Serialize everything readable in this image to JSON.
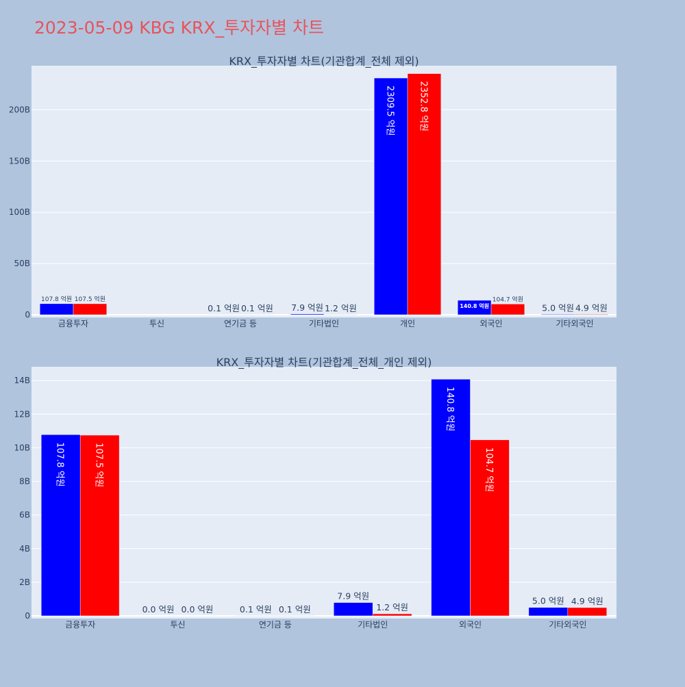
{
  "page_title": "2023-05-09 KBG KRX_투자자별 차트",
  "colors": {
    "background": "#b0c4de",
    "plot_background": "#e5ecf6",
    "title": "#e8535b",
    "text": "#2a3f5f",
    "series_1": "#0000ff",
    "series_2": "#ff0000"
  },
  "chart_data": [
    {
      "type": "bar",
      "title": "KRX_투자자별 차트(기관합계_전체 제외)",
      "categories": [
        "금융투자",
        "투신",
        "연기금 등",
        "기타법인",
        "개인",
        "외국인",
        "기타외국인"
      ],
      "series": [
        {
          "values": [
            10.78,
            0.0,
            0.01,
            0.79,
            230.95,
            14.08,
            0.5
          ],
          "labels": [
            "107.8 억원",
            "",
            "0.1 억원",
            "7.9 억원",
            "2309.5 억원",
            "140.8 억원",
            "5.0 억원"
          ]
        },
        {
          "values": [
            10.75,
            0.0,
            0.01,
            0.12,
            235.28,
            10.47,
            0.49
          ],
          "labels": [
            "107.5 억원",
            "",
            "0.1 억원",
            "1.2 억원",
            "2352.8 억원",
            "104.7 억원",
            "4.9 억원"
          ]
        }
      ],
      "yticks": [
        {
          "value": 0,
          "label": "0"
        },
        {
          "value": 50,
          "label": "50B"
        },
        {
          "value": 100,
          "label": "100B"
        },
        {
          "value": 150,
          "label": "150B"
        },
        {
          "value": 200,
          "label": "200B"
        }
      ],
      "ylim": [
        0,
        243
      ],
      "grid": true
    },
    {
      "type": "bar",
      "title": "KRX_투자자별 차트(기관합계_전체_개인 제외)",
      "categories": [
        "금융투자",
        "투신",
        "연기금 등",
        "기타법인",
        "외국인",
        "기타외국인"
      ],
      "series": [
        {
          "values": [
            10.78,
            0.0,
            0.01,
            0.79,
            14.08,
            0.5
          ],
          "labels": [
            "107.8 억원",
            "0.0 억원",
            "0.1 억원",
            "7.9 억원",
            "140.8 억원",
            "5.0 억원"
          ]
        },
        {
          "values": [
            10.75,
            0.0,
            0.01,
            0.12,
            10.47,
            0.49
          ],
          "labels": [
            "107.5 억원",
            "0.0 억원",
            "0.1 억원",
            "1.2 억원",
            "104.7 억원",
            "4.9 억원"
          ]
        }
      ],
      "yticks": [
        {
          "value": 0,
          "label": "0"
        },
        {
          "value": 2,
          "label": "2B"
        },
        {
          "value": 4,
          "label": "4B"
        },
        {
          "value": 6,
          "label": "6B"
        },
        {
          "value": 8,
          "label": "8B"
        },
        {
          "value": 10,
          "label": "10B"
        },
        {
          "value": 12,
          "label": "12B"
        },
        {
          "value": 14,
          "label": "14B"
        }
      ],
      "ylim": [
        0,
        14.82
      ],
      "grid": true
    }
  ]
}
